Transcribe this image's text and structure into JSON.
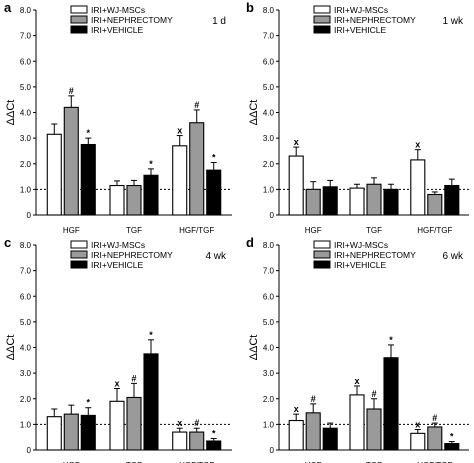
{
  "chart_data": [
    {
      "type": "bar",
      "panel_label": "a",
      "time_label": "1 d",
      "ylabel": "ΔΔCt",
      "ylim": [
        0,
        8
      ],
      "yticks": [
        "0",
        "1.0",
        "2.0",
        "3.0",
        "4.0",
        "5.0",
        "6.0",
        "7.0",
        "8.0"
      ],
      "reference_line": 1.0,
      "categories": [
        "HGF",
        "TGF",
        "HGF/TGF"
      ],
      "series": [
        {
          "name": "IRI+WJ-MSCs",
          "color": "#ffffff",
          "values": [
            3.15,
            1.15,
            2.7
          ],
          "errors": [
            0.4,
            0.18,
            0.4
          ],
          "marks": [
            "",
            "",
            "x"
          ]
        },
        {
          "name": "IRI+NEPHRECTOMY",
          "color": "#9a9a9a",
          "values": [
            4.2,
            1.15,
            3.6
          ],
          "errors": [
            0.45,
            0.2,
            0.5
          ],
          "marks": [
            "#",
            "",
            "#"
          ]
        },
        {
          "name": "IRI+VEHICLE",
          "color": "#000000",
          "values": [
            2.75,
            1.55,
            1.75
          ],
          "errors": [
            0.25,
            0.25,
            0.3
          ],
          "marks": [
            "*",
            "*",
            "*"
          ]
        }
      ]
    },
    {
      "type": "bar",
      "panel_label": "b",
      "time_label": "1 wk",
      "ylabel": "ΔΔCt",
      "ylim": [
        0,
        8
      ],
      "yticks": [
        "0",
        "1.0",
        "2.0",
        "3.0",
        "4.0",
        "5.0",
        "6.0",
        "7.0",
        "8.0"
      ],
      "reference_line": 1.0,
      "categories": [
        "HGF",
        "TGF",
        "HGF/TGF"
      ],
      "series": [
        {
          "name": "IRI+WJ-MSCs",
          "color": "#ffffff",
          "values": [
            2.3,
            1.05,
            2.15
          ],
          "errors": [
            0.35,
            0.15,
            0.4
          ],
          "marks": [
            "x",
            "",
            "x"
          ]
        },
        {
          "name": "IRI+NEPHRECTOMY",
          "color": "#9a9a9a",
          "values": [
            1.0,
            1.2,
            0.8
          ],
          "errors": [
            0.3,
            0.25,
            0.1
          ],
          "marks": [
            "",
            "",
            ""
          ]
        },
        {
          "name": "IRI+VEHICLE",
          "color": "#000000",
          "values": [
            1.1,
            1.0,
            1.15
          ],
          "errors": [
            0.25,
            0.2,
            0.25
          ],
          "marks": [
            "",
            "",
            ""
          ]
        }
      ]
    },
    {
      "type": "bar",
      "panel_label": "c",
      "time_label": "4 wk",
      "ylabel": "ΔΔCt",
      "ylim": [
        0,
        8
      ],
      "yticks": [
        "0",
        "1.0",
        "2.0",
        "3.0",
        "4.0",
        "5.0",
        "6.0",
        "7.0",
        "8.0"
      ],
      "reference_line": 1.0,
      "categories": [
        "HGF",
        "TGF",
        "HGF/TGF"
      ],
      "series": [
        {
          "name": "IRI+WJ-MSCs",
          "color": "#ffffff",
          "values": [
            1.3,
            1.9,
            0.7
          ],
          "errors": [
            0.3,
            0.5,
            0.15
          ],
          "marks": [
            "",
            "x",
            "x"
          ]
        },
        {
          "name": "IRI+NEPHRECTOMY",
          "color": "#9a9a9a",
          "values": [
            1.4,
            2.05,
            0.7
          ],
          "errors": [
            0.35,
            0.55,
            0.15
          ],
          "marks": [
            "",
            "#",
            "#"
          ]
        },
        {
          "name": "IRI+VEHICLE",
          "color": "#000000",
          "values": [
            1.35,
            3.75,
            0.35
          ],
          "errors": [
            0.3,
            0.55,
            0.1
          ],
          "marks": [
            "*",
            "*",
            "*"
          ]
        }
      ]
    },
    {
      "type": "bar",
      "panel_label": "d",
      "time_label": "6 wk",
      "ylabel": "ΔΔCt",
      "ylim": [
        0,
        8
      ],
      "yticks": [
        "0",
        "1.0",
        "2.0",
        "3.0",
        "4.0",
        "5.0",
        "6.0",
        "7.0",
        "8.0"
      ],
      "reference_line": 1.0,
      "categories": [
        "HGF",
        "TGF",
        "HGF/TGF"
      ],
      "series": [
        {
          "name": "IRI+WJ-MSCs",
          "color": "#ffffff",
          "values": [
            1.15,
            2.15,
            0.65
          ],
          "errors": [
            0.25,
            0.35,
            0.15
          ],
          "marks": [
            "x",
            "x",
            "x"
          ]
        },
        {
          "name": "IRI+NEPHRECTOMY",
          "color": "#9a9a9a",
          "values": [
            1.45,
            1.6,
            0.9
          ],
          "errors": [
            0.35,
            0.4,
            0.15
          ],
          "marks": [
            "#",
            "#",
            "#"
          ]
        },
        {
          "name": "IRI+VEHICLE",
          "color": "#000000",
          "values": [
            0.85,
            3.6,
            0.25
          ],
          "errors": [
            0.2,
            0.5,
            0.08
          ],
          "marks": [
            "",
            "*",
            "*"
          ]
        }
      ]
    }
  ]
}
